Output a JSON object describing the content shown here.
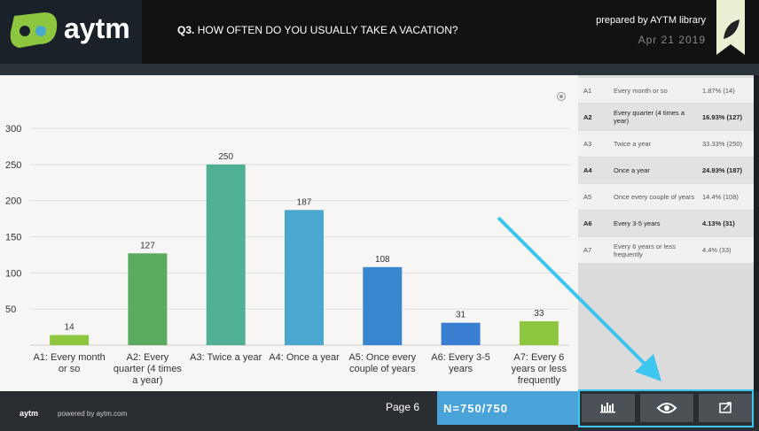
{
  "header": {
    "logo": "aytm",
    "question_number": "Q3.",
    "question": "HOW OFTEN DO YOU USUALLY TAKE A VACATION?",
    "prepared_by": "prepared by AYTM library",
    "date": "Apr 21 2019"
  },
  "chart_data": {
    "type": "bar",
    "categories": [
      "A1: Every month or so",
      "A2: Every quarter (4 times a year)",
      "A3: Twice a year",
      "A4: Once a year",
      "A5: Once every couple of years",
      "A6: Every 3-5 years",
      "A7: Every 6 years or less frequently"
    ],
    "values": [
      14,
      127,
      250,
      187,
      108,
      31,
      33
    ],
    "colors": [
      "#8dc63f",
      "#5aaa5f",
      "#50b095",
      "#4aa8d0",
      "#3a85d0",
      "#3a7ed2",
      "#8dc63f"
    ],
    "ylim": [
      0,
      300
    ],
    "yticks": [
      50,
      100,
      150,
      200,
      250,
      300
    ],
    "grid": true
  },
  "table": {
    "rows": [
      [
        "A1",
        "Every month or so",
        "1.87% (14)"
      ],
      [
        "A2",
        "Every quarter (4 times a year)",
        "16.93% (127)"
      ],
      [
        "A3",
        "Twice a year",
        "33.33% (250)"
      ],
      [
        "A4",
        "Once a year",
        "24.93% (187)"
      ],
      [
        "A5",
        "Once every couple of years",
        "14.4% (108)"
      ],
      [
        "A6",
        "Every 3-5 years",
        "4.13% (31)"
      ],
      [
        "A7",
        "Every 6 years or less frequently",
        "4.4% (33)"
      ]
    ]
  },
  "footer": {
    "logo": "aytm",
    "powered": "powered by aytm.com",
    "page": "Page 6",
    "sample": "N=750/750"
  }
}
